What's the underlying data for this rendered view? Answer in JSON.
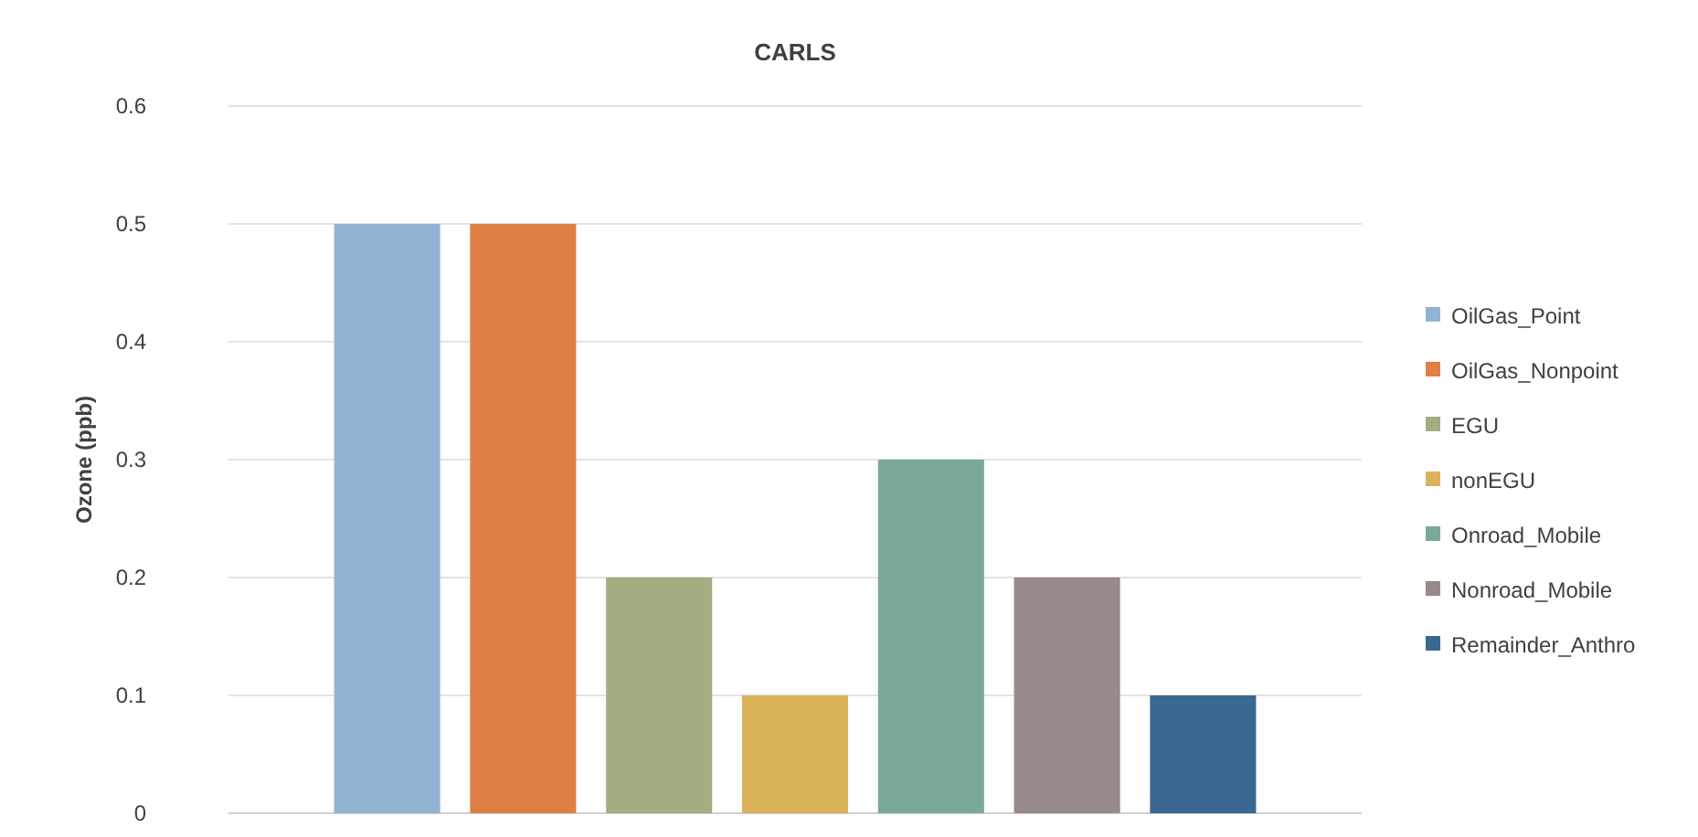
{
  "chart_data": {
    "type": "bar",
    "title": "CARLS",
    "ylabel": "Ozone (ppb)",
    "categories": [
      null
    ],
    "series": [
      {
        "name": "OilGas_Point",
        "color": "#93b3d3",
        "values": [
          0.5
        ]
      },
      {
        "name": "OilGas_Nonpoint",
        "color": "#de7f45",
        "values": [
          0.5
        ]
      },
      {
        "name": "EGU",
        "color": "#a3ad82",
        "values": [
          0.2
        ]
      },
      {
        "name": "nonEGU",
        "color": "#d9b25a",
        "values": [
          0.1
        ]
      },
      {
        "name": "Onroad_Mobile",
        "color": "#7aa89a",
        "values": [
          0.3
        ]
      },
      {
        "name": "Nonroad_Mobile",
        "color": "#978a88",
        "values": [
          0.2
        ]
      },
      {
        "name": "Remainder_Anthro",
        "color": "#3b6890",
        "values": [
          0.1
        ]
      }
    ],
    "ylim": [
      0,
      0.6
    ],
    "yticks": [
      0,
      0.1,
      0.2,
      0.3,
      0.4,
      0.5,
      0.6
    ],
    "grid": "y",
    "legend": "right"
  }
}
